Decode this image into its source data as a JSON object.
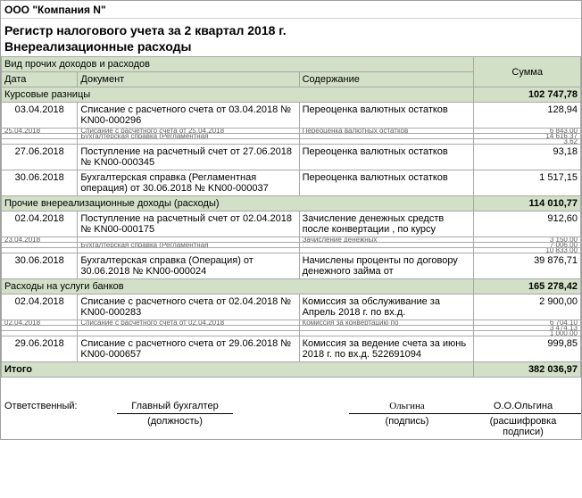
{
  "company": "ООО \"Компания N\"",
  "title1": "Регистр налогового учета за 2 квартал 2018 г.",
  "title2": "Внереализационные расходы",
  "header": {
    "group_line": "Вид прочих доходов и расходов",
    "date": "Дата",
    "doc": "Документ",
    "desc": "Содержание",
    "sum": "Сумма"
  },
  "sections": [
    {
      "name": "Курсовые разницы",
      "total": "102 747,78",
      "rows": [
        {
          "date": "03.04.2018",
          "doc": "Списание с расчетного счета от 03.04.2018 № KN00-000296",
          "desc": "Переоценка валютных остатков",
          "sum": "128,94"
        }
      ],
      "squished": [
        {
          "date": "25.04.2018",
          "doc": "Списание с расчетного счета от 25.04.2018",
          "desc": "Переоценка валютных остатков",
          "sum": "6 843,00"
        },
        {
          "date": "",
          "doc": "Бухгалтерская справка (Регламентная",
          "desc": "",
          "sum": "14 616,37"
        },
        {
          "date": "",
          "doc": "",
          "desc": "",
          "sum": "3,62"
        }
      ],
      "rows2": [
        {
          "date": "27.06.2018",
          "doc": "Поступление на расчетный счет от 27.06.2018 № KN00-000345",
          "desc": "Переоценка валютных остатков",
          "sum": "93,18"
        },
        {
          "date": "30.06.2018",
          "doc": "Бухгалтерская справка (Регламентная операция) от 30.06.2018 № KN00-000037",
          "desc": "Переоценка валютных остатков",
          "sum": "1 517,15"
        }
      ]
    },
    {
      "name": "Прочие внереализационные доходы (расходы)",
      "total": "114 010,77",
      "rows": [
        {
          "date": "02.04.2018",
          "doc": "Поступление на расчетный счет от 02.04.2018 № KN00-000175",
          "desc": "Зачисление денежных средств после конвертации , по курсу",
          "sum": "912,60"
        }
      ],
      "squished": [
        {
          "date": "23.04.2018",
          "doc": "",
          "desc": "Зачисление денежных",
          "sum": "3 150,00"
        },
        {
          "date": "",
          "doc": "Бухгалтерская справка (Регламентная",
          "desc": "",
          "sum": "7 006,00"
        },
        {
          "date": "",
          "doc": "",
          "desc": "",
          "sum": "10 833,00"
        }
      ],
      "rows2": [
        {
          "date": "30.06.2018",
          "doc": "Бухгалтерская справка (Операция) от 30.06.2018 № KN00-000024",
          "desc": "Начислены проценты по договору денежного займа от",
          "sum": "39 876,71"
        }
      ]
    },
    {
      "name": "Расходы на услуги банков",
      "total": "165 278,42",
      "rows": [
        {
          "date": "02.04.2018",
          "doc": "Списание с расчетного счета от 02.04.2018 № KN00-000283",
          "desc": "Комиссия за обслуживание за Апрель 2018 г. по вх.д.",
          "sum": "2 900,00"
        }
      ],
      "squished": [
        {
          "date": "02.04.2018",
          "doc": "Списание с расчетного счета от 02.04.2018",
          "desc": "Комиссия за конвертацию по",
          "sum": "6 704,10"
        },
        {
          "date": "",
          "doc": "",
          "desc": "",
          "sum": "3 474,13"
        },
        {
          "date": "",
          "doc": "",
          "desc": "",
          "sum": "1 000,00"
        }
      ],
      "rows2": [
        {
          "date": "29.06.2018",
          "doc": "Списание с расчетного счета от 29.06.2018 № KN00-000657",
          "desc": "Комиссия за ведение счета за июнь 2018 г. по вх.д. 522691094",
          "sum": "999,85"
        }
      ]
    }
  ],
  "grand_total_label": "Итого",
  "grand_total": "382 036,97",
  "sign": {
    "resp": "Ответственный:",
    "position": "Главный бухгалтер",
    "signature": "Ольгина",
    "name": "О.О.Ольгина",
    "lbl_position": "(должность)",
    "lbl_sign": "(подпись)",
    "lbl_name": "(расшифровка подписи)"
  },
  "colors": {
    "section_bg": "#d2e0c8",
    "border": "#a8a8a8"
  }
}
